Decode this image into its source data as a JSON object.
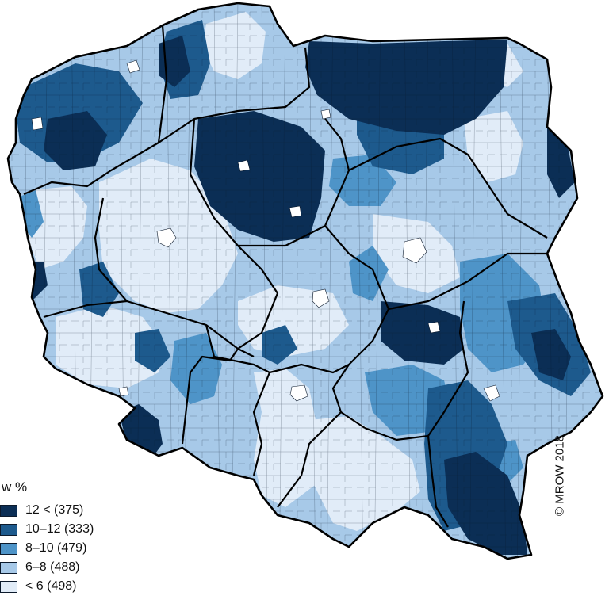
{
  "legend": {
    "title": "w %",
    "items": [
      {
        "label": "12 < (375)",
        "color": "#0b2e55"
      },
      {
        "label": "10–12 (333)",
        "color": "#1d5a8d"
      },
      {
        "label": "8–10 (479)",
        "color": "#4e94c8"
      },
      {
        "label": "6–8 (488)",
        "color": "#a7c9e8"
      },
      {
        "label": "< 6 (498)",
        "color": "#e1ecf8"
      }
    ]
  },
  "copyright": "© MROW 2018"
}
